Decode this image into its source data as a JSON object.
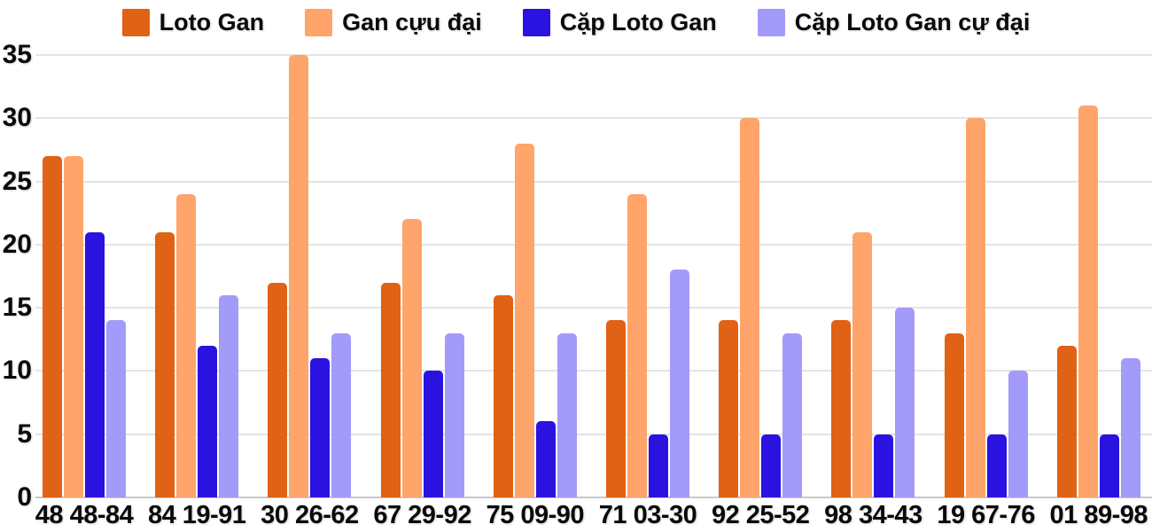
{
  "chart_data": {
    "type": "bar",
    "title": "",
    "xlabel": "",
    "ylabel": "",
    "ylim": [
      0,
      35
    ],
    "yticks": [
      0,
      5,
      10,
      15,
      20,
      25,
      30,
      35
    ],
    "grid": true,
    "legend_position": "top",
    "background_color": "#ffffff",
    "gridline_color": "#e4e4e4",
    "axis_text_color": "#0a0a0a",
    "categories": [
      "48 48-84",
      "84 19-91",
      "30 26-62",
      "67 29-92",
      "75 09-90",
      "71 03-30",
      "92 25-52",
      "98 34-43",
      "19 67-76",
      "01 89-98"
    ],
    "series": [
      {
        "name": "Loto Gan",
        "color": "#e06214",
        "values": [
          27,
          21,
          17,
          17,
          16,
          14,
          14,
          14,
          13,
          12
        ]
      },
      {
        "name": "Gan cựu đại",
        "color": "#ffa46b",
        "values": [
          27,
          24,
          35,
          22,
          28,
          24,
          30,
          21,
          30,
          31
        ]
      },
      {
        "name": "Cặp Loto Gan",
        "color": "#2a12e0",
        "values": [
          21,
          12,
          11,
          10,
          6,
          5,
          5,
          5,
          5,
          5
        ]
      },
      {
        "name": "Cặp Loto Gan cự đại",
        "color": "#a29bf9",
        "values": [
          14,
          16,
          13,
          13,
          13,
          18,
          13,
          15,
          10,
          11
        ]
      }
    ]
  }
}
